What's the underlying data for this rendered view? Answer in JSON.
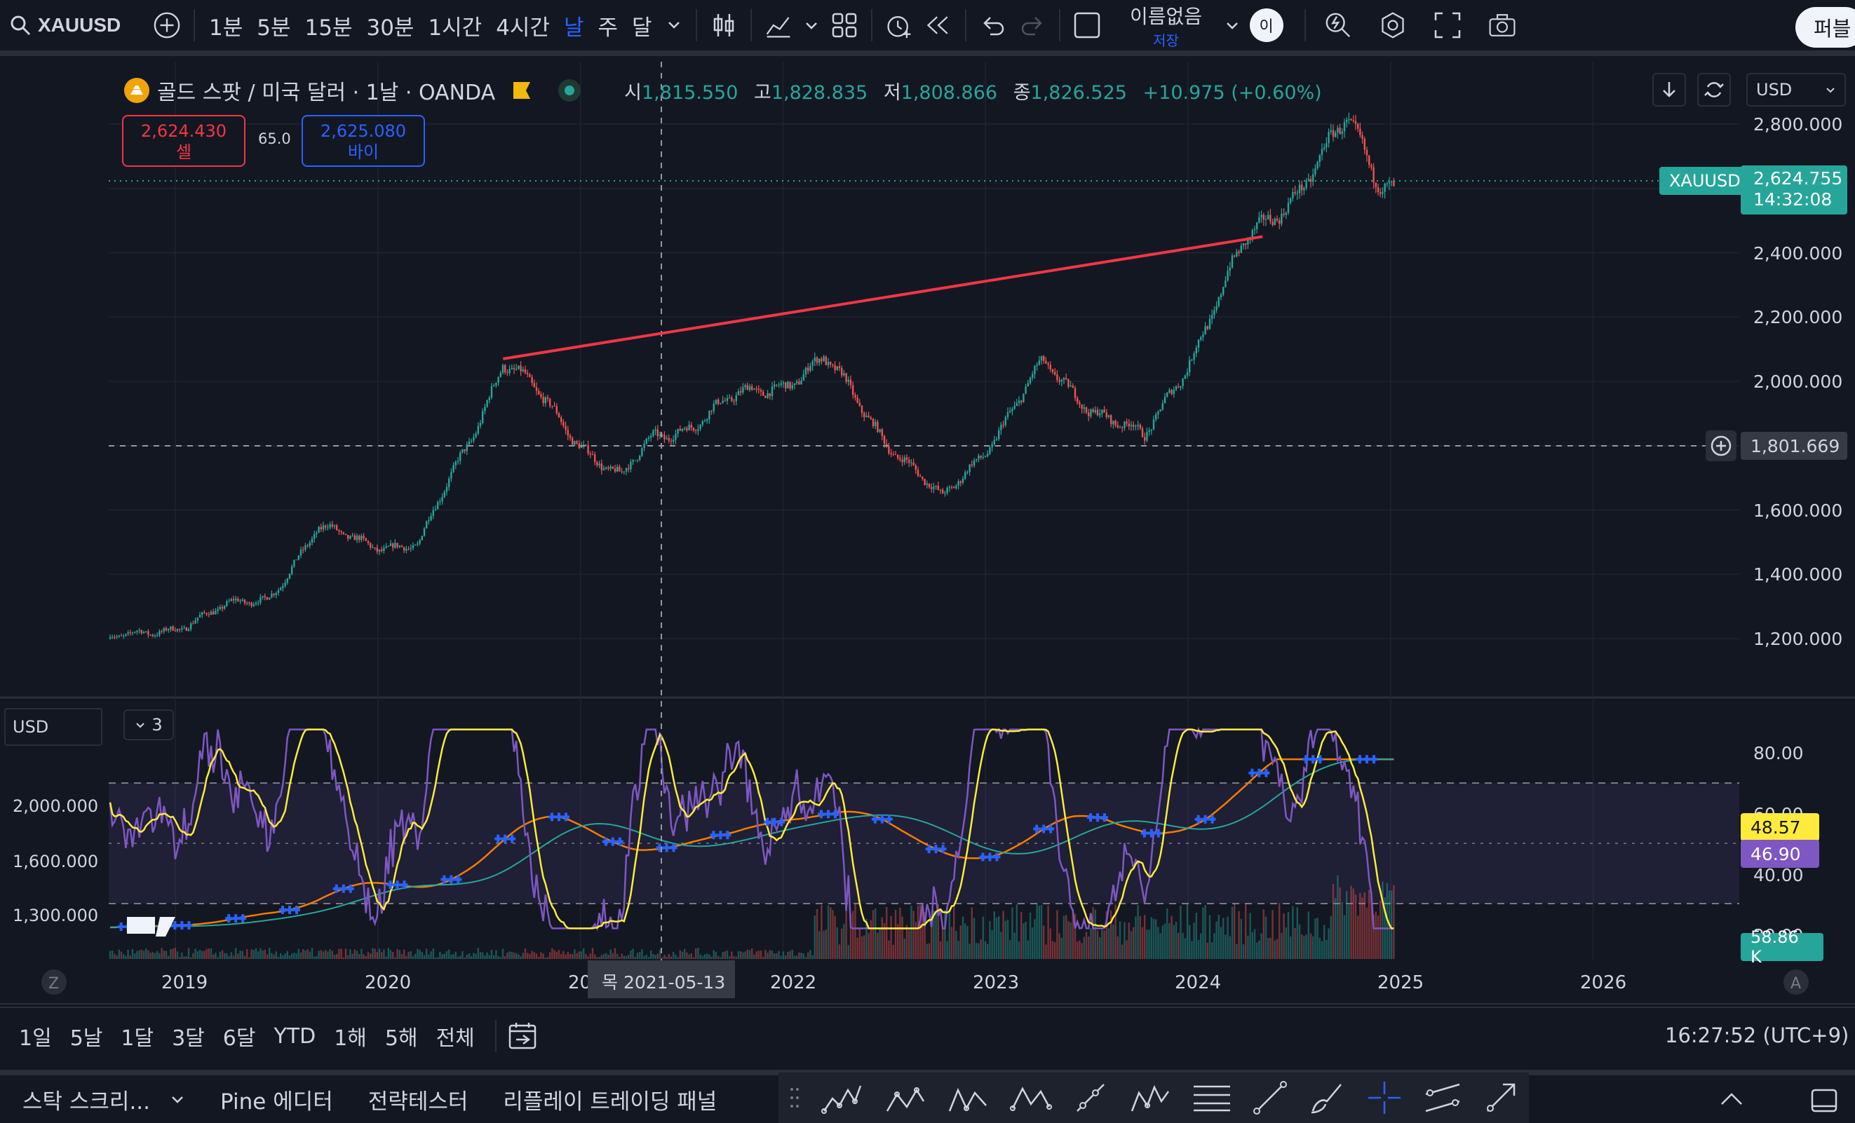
{
  "toolbar": {
    "symbol": "XAUUSD",
    "intervals": [
      "1분",
      "5분",
      "15분",
      "30분",
      "1시간",
      "4시간",
      "날",
      "주",
      "달"
    ],
    "active_interval": "날",
    "layout_name": "이름없음",
    "layout_save": "저장",
    "avatar": "이",
    "publish": "퍼블"
  },
  "legend": {
    "title": "골드 스팟 / 미국 달러 · 1날 · OANDA",
    "o_label": "시",
    "o": "1,815.550",
    "h_label": "고",
    "h": "1,828.835",
    "l_label": "저",
    "l": "1,808.866",
    "c_label": "종",
    "c": "1,826.525",
    "change": "+10.975 (+0.60%)"
  },
  "trade": {
    "sell_price": "2,624.430",
    "sell_label": "셀",
    "spread": "65.0",
    "buy_price": "2,625.080",
    "buy_label": "바이"
  },
  "price_scale": {
    "currency": "USD",
    "ticks": [
      "2,800.000",
      "2,400.000",
      "2,200.000",
      "2,000.000",
      "1,600.000",
      "1,400.000",
      "1,200.000"
    ],
    "last_symbol": "XAUUSD",
    "last_price": "2,624.755",
    "countdown": "14:32:08",
    "crosshair_price": "1,801.669"
  },
  "indicator": {
    "currency": "USD",
    "collapse_count": "3",
    "left_ticks": [
      "2,000.000",
      "1,600.000",
      "1,300.000"
    ],
    "right_ticks": [
      "80.00",
      "60.00",
      "40.00",
      "20.00"
    ],
    "rsi_value": "48.57",
    "rsi_ma_value": "46.90",
    "volume_value": "58.86 K"
  },
  "time_axis": {
    "labels": [
      "2019",
      "2020",
      "2021",
      "2022",
      "2023",
      "2024",
      "2025",
      "2026"
    ],
    "crosshair_date": "목 2021-05-13",
    "z_label": "Z",
    "a_label": "A"
  },
  "ranges": [
    "1일",
    "5날",
    "1달",
    "3달",
    "6달",
    "YTD",
    "1해",
    "5해",
    "전체"
  ],
  "clock": "16:27:52 (UTC+9)",
  "footer_tabs": [
    "스탁 스크리...",
    "Pine 에디터",
    "전략테스터",
    "리플레이 트레이딩 패널"
  ],
  "colors": {
    "background": "#131722",
    "up": "#26a69a",
    "down": "#ef5350",
    "trendline": "#f23645",
    "rsi": "#7e57c2",
    "rsi_ma": "#ffeb3b",
    "accent": "#2962ff"
  },
  "chart_data": {
    "type": "candlestick",
    "symbol": "XAUUSD",
    "x_label_years": [
      2019,
      2020,
      2021,
      2022,
      2023,
      2024,
      2025,
      2026
    ],
    "y_range": [
      1100,
      2850
    ],
    "approx_close_path": [
      {
        "x": "2018-10",
        "y": 1200
      },
      {
        "x": "2019-06",
        "y": 1330
      },
      {
        "x": "2019-09",
        "y": 1530
      },
      {
        "x": "2020-03",
        "y": 1480
      },
      {
        "x": "2020-08",
        "y": 2060
      },
      {
        "x": "2021-03",
        "y": 1690
      },
      {
        "x": "2021-05",
        "y": 1826
      },
      {
        "x": "2022-03",
        "y": 2060
      },
      {
        "x": "2022-10",
        "y": 1620
      },
      {
        "x": "2023-04",
        "y": 2040
      },
      {
        "x": "2023-10",
        "y": 1810
      },
      {
        "x": "2024-04",
        "y": 2420
      },
      {
        "x": "2024-10",
        "y": 2790
      },
      {
        "x": "2024-12",
        "y": 2625
      }
    ],
    "trendline": [
      {
        "x": "2020-08",
        "y": 2070
      },
      {
        "x": "2024-05",
        "y": 2450
      }
    ],
    "horizontal_line": 1801.669
  }
}
